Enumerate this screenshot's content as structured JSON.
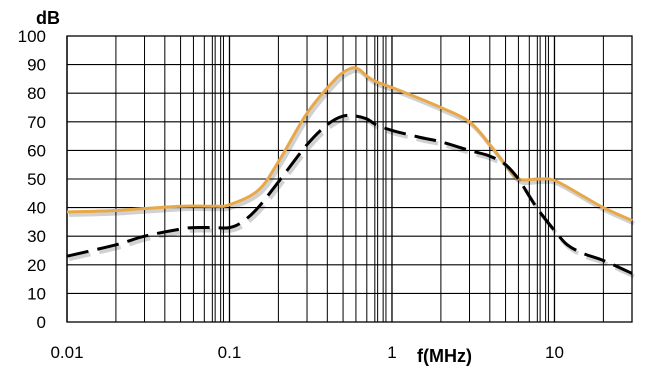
{
  "chart_data": {
    "type": "line",
    "title": "",
    "xlabel": "f(MHz)",
    "ylabel": "dB",
    "x_scale": "log",
    "xlim": [
      0.01,
      30
    ],
    "ylim": [
      0,
      100
    ],
    "grid": true,
    "legend": "none",
    "x_ticks": [
      {
        "value": 0.01,
        "label": "0.01"
      },
      {
        "value": 0.1,
        "label": "0.1"
      },
      {
        "value": 1,
        "label": "1"
      },
      {
        "value": 10,
        "label": "10"
      }
    ],
    "y_ticks": [
      {
        "value": 0,
        "label": "0"
      },
      {
        "value": 10,
        "label": "10"
      },
      {
        "value": 20,
        "label": "20"
      },
      {
        "value": 30,
        "label": "30"
      },
      {
        "value": 40,
        "label": "40"
      },
      {
        "value": 50,
        "label": "50"
      },
      {
        "value": 60,
        "label": "60"
      },
      {
        "value": 70,
        "label": "70"
      },
      {
        "value": 80,
        "label": "80"
      },
      {
        "value": 90,
        "label": "90"
      },
      {
        "value": 100,
        "label": "100"
      }
    ],
    "series": [
      {
        "color": "#E8A84A",
        "style": "solid",
        "x": [
          0.01,
          0.02,
          0.05,
          0.08,
          0.1,
          0.15,
          0.2,
          0.3,
          0.45,
          0.55,
          0.62,
          0.7,
          0.8,
          1.0,
          1.5,
          2.0,
          3.0,
          4.0,
          5.0,
          6.0,
          8.0,
          10.0,
          15.0,
          20.0,
          30.0
        ],
        "y": [
          38.5,
          39,
          40.5,
          40.5,
          41,
          46,
          56,
          73,
          85,
          88.5,
          88.5,
          86,
          84,
          82,
          78,
          75,
          70,
          62,
          55,
          50,
          50,
          49.5,
          44,
          40,
          35.5
        ]
      },
      {
        "color": "#000000",
        "style": "dashed",
        "x": [
          0.01,
          0.02,
          0.03,
          0.05,
          0.06,
          0.08,
          0.1,
          0.12,
          0.15,
          0.2,
          0.3,
          0.4,
          0.5,
          0.6,
          0.7,
          0.8,
          1.0,
          1.5,
          2.0,
          3.0,
          4.0,
          5.0,
          6.0,
          7.0,
          8.0,
          10.0,
          12.0,
          15.0,
          20.0,
          30.0
        ],
        "y": [
          23,
          27,
          30,
          32.5,
          33,
          33,
          33,
          35,
          40,
          49,
          62,
          69,
          72,
          72,
          71,
          69,
          67,
          64.5,
          63,
          60,
          58,
          55,
          50,
          44,
          39,
          32,
          27,
          24,
          21.5,
          17
        ]
      }
    ]
  }
}
